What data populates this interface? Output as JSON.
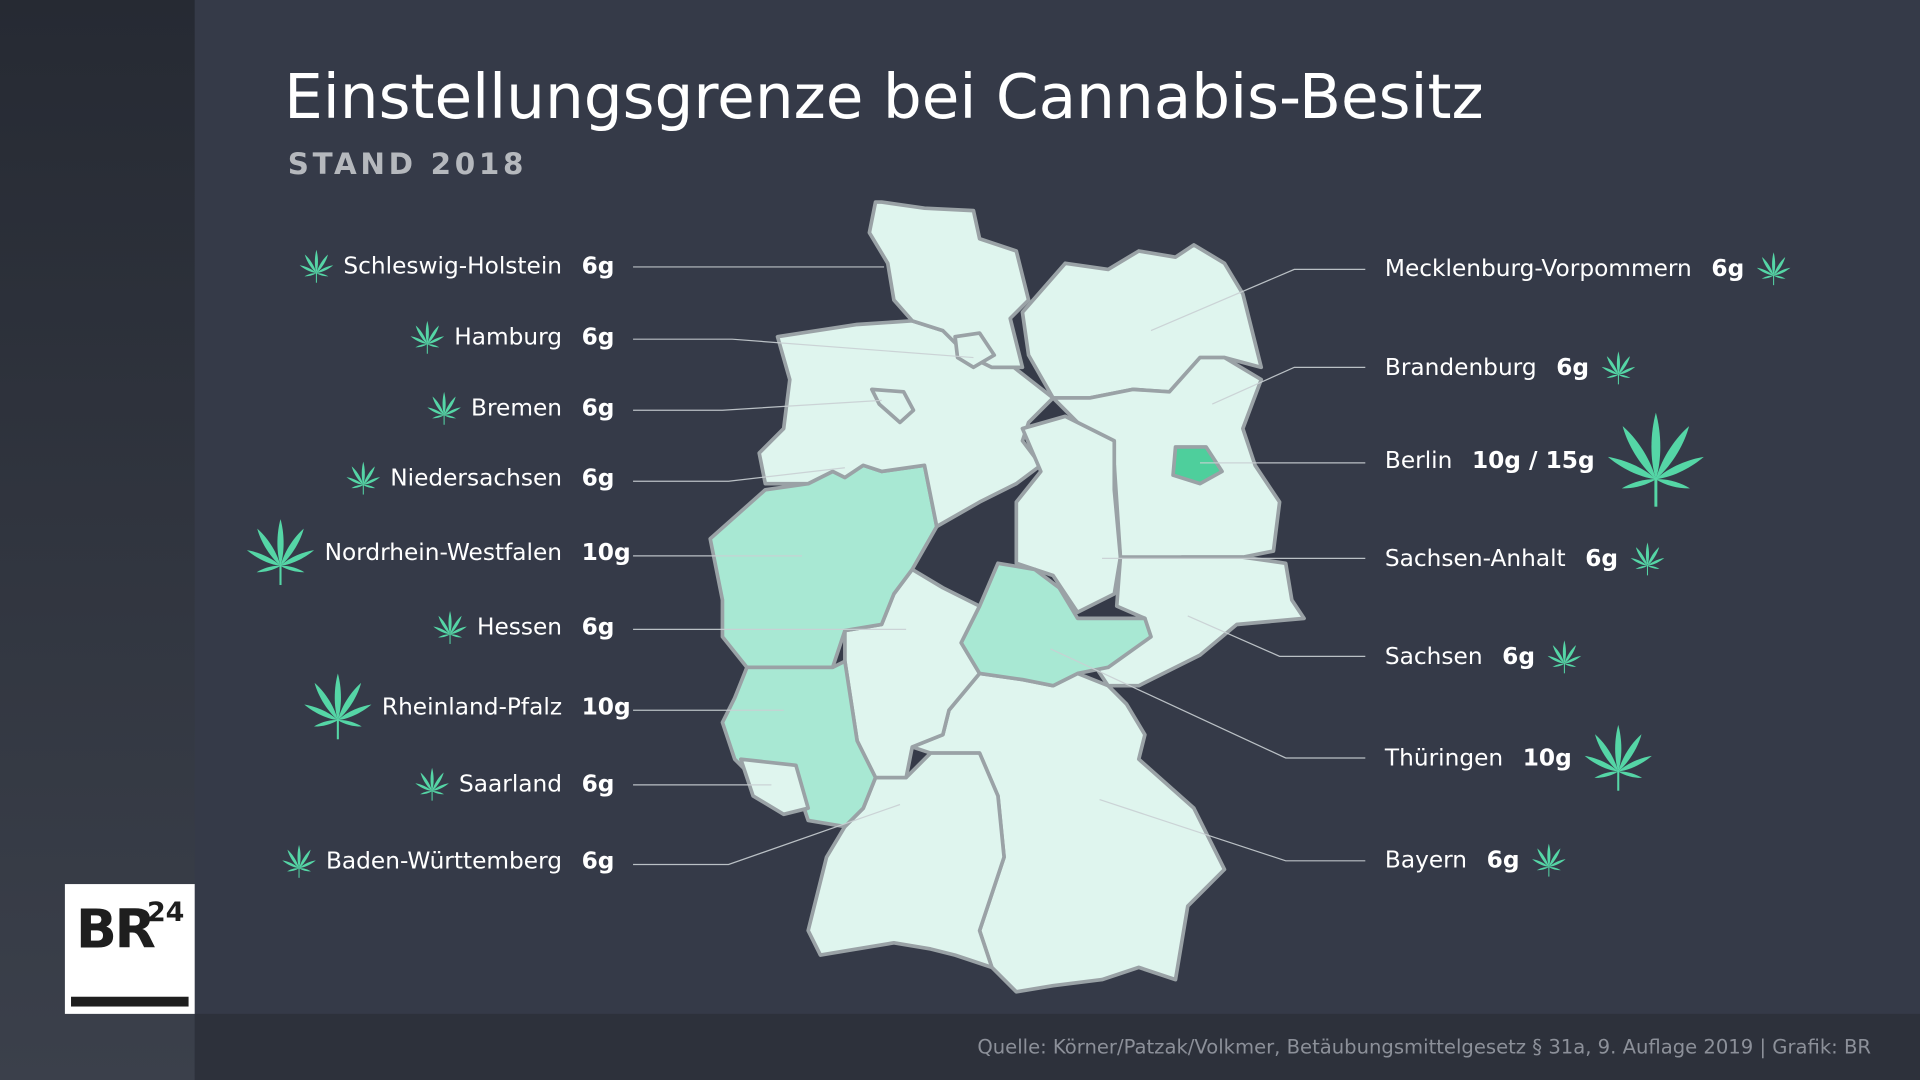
{
  "header": {
    "title": "Einstellungsgrenze bei Cannabis-Besitz",
    "subtitle": "STAND 2018"
  },
  "states": {
    "left": [
      {
        "name": "Schleswig-Holstein",
        "amount": "6g"
      },
      {
        "name": "Hamburg",
        "amount": "6g"
      },
      {
        "name": "Bremen",
        "amount": "6g"
      },
      {
        "name": "Niedersachsen",
        "amount": "6g"
      },
      {
        "name": "Nordrhein-Westfalen",
        "amount": "10g"
      },
      {
        "name": "Hessen",
        "amount": "6g"
      },
      {
        "name": "Rheinland-Pfalz",
        "amount": "10g"
      },
      {
        "name": "Saarland",
        "amount": "6g"
      },
      {
        "name": "Baden-Württemberg",
        "amount": "6g"
      }
    ],
    "right": [
      {
        "name": "Mecklenburg-Vorpommern",
        "amount": "6g"
      },
      {
        "name": "Brandenburg",
        "amount": "6g"
      },
      {
        "name": "Berlin",
        "amount": "10g / 15g"
      },
      {
        "name": "Sachsen-Anhalt",
        "amount": "6g"
      },
      {
        "name": "Sachsen",
        "amount": "6g"
      },
      {
        "name": "Thüringen",
        "amount": "10g"
      },
      {
        "name": "Bayern",
        "amount": "6g"
      }
    ]
  },
  "logo": {
    "brand": "BR",
    "number": "24"
  },
  "source": "Quelle: Körner/Patzak/Volkmer, Betäubungsmittelgesetz § 31a,  9. Auflage 2019 | Grafik: BR"
}
